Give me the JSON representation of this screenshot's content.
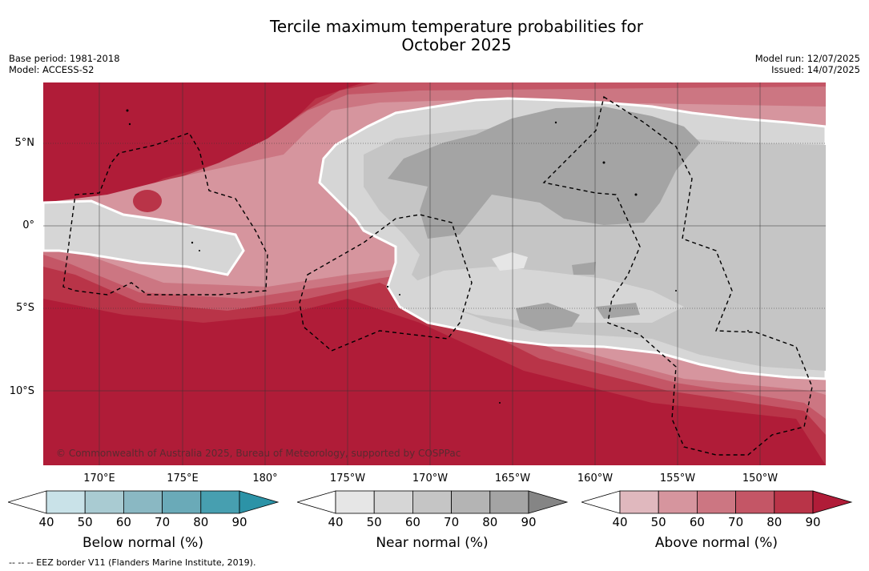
{
  "title_line1": "Tercile maximum temperature probabilities for",
  "title_line2": "October 2025",
  "base_period": "Base period: 1981-2018",
  "model": "Model: ACCESS-S2",
  "model_run": "Model run: 12/07/2025",
  "issued": "Issued: 14/07/2025",
  "lat_labels": [
    "5°N",
    "0°",
    "5°S",
    "10°S"
  ],
  "lon_labels": [
    "170°E",
    "175°E",
    "180°",
    "175°W",
    "170°W",
    "165°W",
    "160°W",
    "155°W",
    "150°W"
  ],
  "copyright": "© Commonwealth of Australia 2025, Bureau of Meteorology, supported by COSPPac",
  "footnote": "--  --  -- EEZ border V11 (Flanders Marine Institute, 2019).",
  "colorbars": [
    {
      "title": "Below normal (%)",
      "ticks": [
        "40",
        "50",
        "60",
        "70",
        "80",
        "90"
      ],
      "colors": [
        "#ffffff",
        "#c9e2e8",
        "#a9cbd2",
        "#8ab8c3",
        "#6aaab8",
        "#479fb0",
        "#2c93a7"
      ]
    },
    {
      "title": "Near normal (%)",
      "ticks": [
        "40",
        "50",
        "60",
        "70",
        "80",
        "90"
      ],
      "colors": [
        "#ffffff",
        "#e6e6e6",
        "#d6d6d6",
        "#c5c5c5",
        "#b4b4b4",
        "#a4a4a4",
        "#858585"
      ]
    },
    {
      "title": "Above normal (%)",
      "ticks": [
        "40",
        "50",
        "60",
        "70",
        "80",
        "90"
      ],
      "colors": [
        "#ffffff",
        "#e0b8be",
        "#d6959e",
        "#cc7682",
        "#c45666",
        "#b93448",
        "#b01c38"
      ]
    }
  ]
}
